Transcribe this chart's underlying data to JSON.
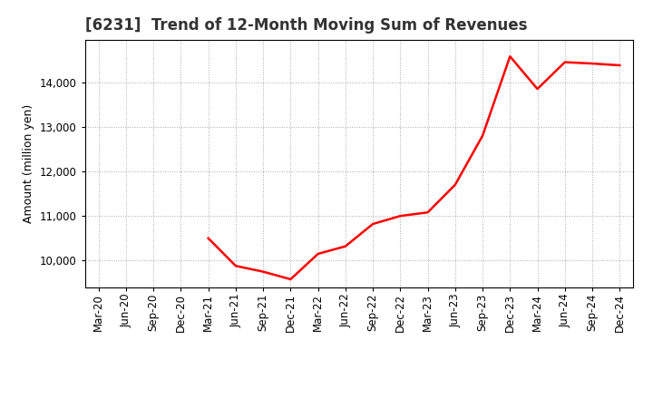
{
  "title": "[6231]  Trend of 12-Month Moving Sum of Revenues",
  "ylabel": "Amount (million yen)",
  "line_color": "#FF0000",
  "line_width": 1.8,
  "background_color": "#FFFFFF",
  "grid_color": "#AAAAAA",
  "dates": [
    "Mar-20",
    "Jun-20",
    "Sep-20",
    "Dec-20",
    "Mar-21",
    "Jun-21",
    "Sep-21",
    "Dec-21",
    "Mar-22",
    "Jun-22",
    "Sep-22",
    "Dec-22",
    "Mar-23",
    "Jun-23",
    "Sep-23",
    "Dec-23",
    "Mar-24",
    "Jun-24",
    "Sep-24",
    "Dec-24"
  ],
  "values": [
    null,
    null,
    null,
    null,
    10500,
    9880,
    9750,
    9580,
    10150,
    10320,
    10820,
    11000,
    11080,
    11700,
    12800,
    14580,
    13850,
    14450,
    14420,
    14380
  ],
  "yticks": [
    10000,
    11000,
    12000,
    13000,
    14000
  ],
  "ylim": [
    9400,
    14950
  ],
  "title_fontsize": 12,
  "title_color": "#333333",
  "label_fontsize": 9,
  "tick_fontsize": 8.5
}
